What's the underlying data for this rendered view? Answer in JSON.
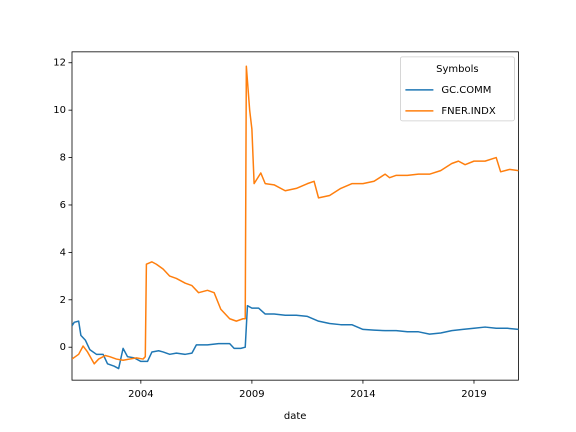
{
  "chart_data": {
    "type": "line",
    "xlabel": "date",
    "legend_title": "Symbols",
    "legend_loc": "upper right",
    "xlim": [
      2000.9,
      2021.0
    ],
    "xticks": [
      2004,
      2009,
      2014,
      2019
    ],
    "ylim": [
      -1.39,
      12.46
    ],
    "yticks": [
      0,
      2,
      4,
      6,
      8,
      10,
      12
    ],
    "series": [
      {
        "name": "GC.COMM",
        "color": "#1f77b4",
        "x": [
          2000.9,
          2001.0,
          2001.2,
          2001.3,
          2001.5,
          2001.7,
          2002.0,
          2002.3,
          2002.5,
          2002.8,
          2003.0,
          2003.2,
          2003.4,
          2003.7,
          2004.0,
          2004.3,
          2004.5,
          2004.8,
          2005.0,
          2005.3,
          2005.6,
          2006.0,
          2006.3,
          2006.5,
          2007.0,
          2007.5,
          2008.0,
          2008.2,
          2008.5,
          2008.7,
          2008.8,
          2009.0,
          2009.3,
          2009.6,
          2010.0,
          2010.5,
          2011.0,
          2011.5,
          2012.0,
          2012.5,
          2013.0,
          2013.5,
          2014.0,
          2014.5,
          2015.0,
          2015.5,
          2016.0,
          2016.5,
          2017.0,
          2017.5,
          2018.0,
          2018.5,
          2019.0,
          2019.5,
          2020.0,
          2020.5,
          2021.0
        ],
        "values": [
          0.9,
          1.05,
          1.1,
          0.5,
          0.3,
          -0.1,
          -0.3,
          -0.3,
          -0.7,
          -0.8,
          -0.9,
          -0.05,
          -0.4,
          -0.45,
          -0.6,
          -0.6,
          -0.2,
          -0.15,
          -0.2,
          -0.3,
          -0.25,
          -0.3,
          -0.25,
          0.1,
          0.1,
          0.15,
          0.15,
          -0.05,
          -0.05,
          0.0,
          1.75,
          1.65,
          1.65,
          1.4,
          1.4,
          1.35,
          1.35,
          1.3,
          1.1,
          1.0,
          0.95,
          0.95,
          0.75,
          0.72,
          0.7,
          0.7,
          0.65,
          0.65,
          0.55,
          0.6,
          0.7,
          0.75,
          0.8,
          0.85,
          0.8,
          0.8,
          0.75
        ]
      },
      {
        "name": "FNER.INDX",
        "color": "#ff7f0e",
        "x": [
          2000.9,
          2001.2,
          2001.4,
          2001.6,
          2001.9,
          2002.1,
          2002.4,
          2002.6,
          2002.9,
          2003.2,
          2003.5,
          2003.8,
          2004.1,
          2004.2,
          2004.25,
          2004.5,
          2004.7,
          2005.0,
          2005.3,
          2005.6,
          2006.0,
          2006.3,
          2006.6,
          2007.0,
          2007.3,
          2007.6,
          2008.0,
          2008.3,
          2008.6,
          2008.7,
          2008.75,
          2008.9,
          2009.0,
          2009.1,
          2009.4,
          2009.6,
          2010.0,
          2010.5,
          2011.0,
          2011.5,
          2011.8,
          2012.0,
          2012.5,
          2013.0,
          2013.5,
          2014.0,
          2014.5,
          2015.0,
          2015.2,
          2015.5,
          2016.0,
          2016.5,
          2017.0,
          2017.5,
          2018.0,
          2018.3,
          2018.6,
          2019.0,
          2019.5,
          2020.0,
          2020.2,
          2020.6,
          2021.0
        ],
        "values": [
          -0.5,
          -0.3,
          0.05,
          -0.2,
          -0.7,
          -0.5,
          -0.35,
          -0.4,
          -0.5,
          -0.55,
          -0.5,
          -0.45,
          -0.5,
          -0.4,
          3.5,
          3.6,
          3.5,
          3.3,
          3.0,
          2.9,
          2.7,
          2.6,
          2.3,
          2.4,
          2.3,
          1.6,
          1.2,
          1.1,
          1.2,
          1.2,
          11.85,
          10.0,
          9.2,
          6.9,
          7.35,
          6.9,
          6.85,
          6.6,
          6.7,
          6.9,
          7.0,
          6.3,
          6.4,
          6.7,
          6.9,
          6.9,
          7.0,
          7.3,
          7.15,
          7.25,
          7.25,
          7.3,
          7.3,
          7.45,
          7.75,
          7.85,
          7.7,
          7.85,
          7.85,
          8.0,
          7.4,
          7.5,
          7.45
        ]
      }
    ]
  }
}
